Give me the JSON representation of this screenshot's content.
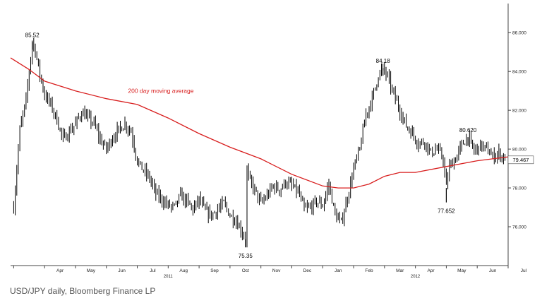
{
  "caption": "USD/JPY daily, Bloomberg Finance LP",
  "chart_data": {
    "type": "line",
    "title": "",
    "xlabel": "",
    "ylabel": "",
    "ylim": [
      74.0,
      87.5
    ],
    "y_ticks": [
      "86.000",
      "84.000",
      "82.000",
      "80.000",
      "78.000",
      "76.000"
    ],
    "y_tick_values": [
      86,
      84,
      82,
      80,
      78,
      76
    ],
    "x_ticks": [
      "Apr",
      "May",
      "Jun",
      "Jul",
      "Aug",
      "Sep",
      "Oct",
      "Nov",
      "Dec",
      "Jan",
      "Feb",
      "Mar",
      "Apr",
      "May",
      "Jun",
      "Jul"
    ],
    "x_years": [
      {
        "label": "2011",
        "month_index": 4
      },
      {
        "label": "2012",
        "month_index": 12
      }
    ],
    "x_range_months": [
      -1.1,
      15.0
    ],
    "series": [
      {
        "name": "",
        "style": "daily bars",
        "color": "#000000",
        "x": [
          -1.0,
          -0.8,
          -0.6,
          -0.4,
          -0.3,
          -0.2,
          -0.1,
          0.0,
          0.2,
          0.4,
          0.6,
          0.8,
          1.0,
          1.2,
          1.4,
          1.6,
          1.8,
          2.0,
          2.2,
          2.4,
          2.6,
          2.8,
          3.0,
          3.15,
          3.4,
          3.6,
          3.8,
          4.0,
          4.2,
          4.4,
          4.6,
          4.8,
          5.0,
          5.2,
          5.4,
          5.6,
          5.8,
          6.0,
          6.2,
          6.4,
          6.5,
          6.55,
          6.6,
          6.8,
          7.0,
          7.2,
          7.4,
          7.6,
          7.8,
          8.0,
          8.2,
          8.4,
          8.6,
          8.8,
          9.0,
          9.2,
          9.4,
          9.6,
          9.8,
          10.0,
          10.2,
          10.4,
          10.6,
          10.8,
          10.95,
          11.1,
          11.3,
          11.5,
          11.7,
          11.9,
          12.1,
          12.3,
          12.5,
          12.7,
          12.9,
          13.0,
          13.1,
          13.3,
          13.5,
          13.7,
          13.9,
          14.1,
          14.3,
          14.5,
          14.7,
          14.9
        ],
        "values": [
          77.0,
          81.0,
          82.5,
          85.52,
          85.1,
          84.2,
          83.5,
          82.8,
          82.3,
          81.5,
          80.5,
          80.9,
          81.3,
          81.9,
          81.6,
          81.3,
          80.5,
          80.0,
          80.6,
          81.0,
          81.3,
          80.9,
          79.4,
          79.0,
          78.5,
          77.7,
          77.4,
          77.1,
          77.0,
          77.6,
          77.3,
          76.9,
          77.4,
          76.8,
          76.6,
          76.9,
          77.2,
          76.6,
          76.3,
          75.7,
          75.35,
          78.9,
          78.5,
          77.9,
          77.2,
          77.6,
          78.1,
          77.9,
          78.3,
          78.1,
          77.8,
          76.9,
          77.0,
          77.3,
          77.1,
          78.2,
          76.6,
          76.2,
          77.5,
          79.0,
          80.0,
          81.8,
          82.6,
          83.8,
          84.18,
          83.7,
          82.8,
          82.0,
          81.2,
          80.8,
          80.3,
          80.4,
          79.8,
          80.0,
          79.5,
          78.0,
          79.1,
          79.5,
          80.2,
          80.62,
          79.9,
          80.2,
          80.0,
          79.6,
          79.8,
          79.47
        ]
      },
      {
        "name": "200 day moving average",
        "color": "#d81e1e",
        "x": [
          -1.1,
          -0.5,
          0.0,
          1.0,
          2.0,
          3.0,
          4.0,
          5.0,
          6.0,
          7.0,
          8.0,
          9.0,
          9.5,
          10.0,
          10.5,
          11.0,
          11.5,
          12.0,
          13.0,
          14.0,
          15.0
        ],
        "values": [
          84.7,
          84.1,
          83.5,
          83.0,
          82.6,
          82.3,
          81.6,
          80.8,
          80.1,
          79.5,
          78.7,
          78.1,
          78.0,
          78.0,
          78.2,
          78.6,
          78.8,
          78.8,
          79.1,
          79.4,
          79.6
        ]
      }
    ],
    "annotations": [
      {
        "text": "85.52",
        "x": -0.4,
        "y": 85.52
      },
      {
        "text": "84.18",
        "x": 10.95,
        "y": 84.18
      },
      {
        "text": "80.620",
        "x": 13.7,
        "y": 80.62
      },
      {
        "text": "77.652",
        "x": 13.0,
        "y": 77.652
      },
      {
        "text": "75.35",
        "x": 6.5,
        "y": 75.35
      },
      {
        "text": "200 day moving average",
        "x": 2.7,
        "y": 83.0
      }
    ],
    "last_value_label": "79.467",
    "last_value": 79.467,
    "grid": false,
    "legend": "none"
  }
}
